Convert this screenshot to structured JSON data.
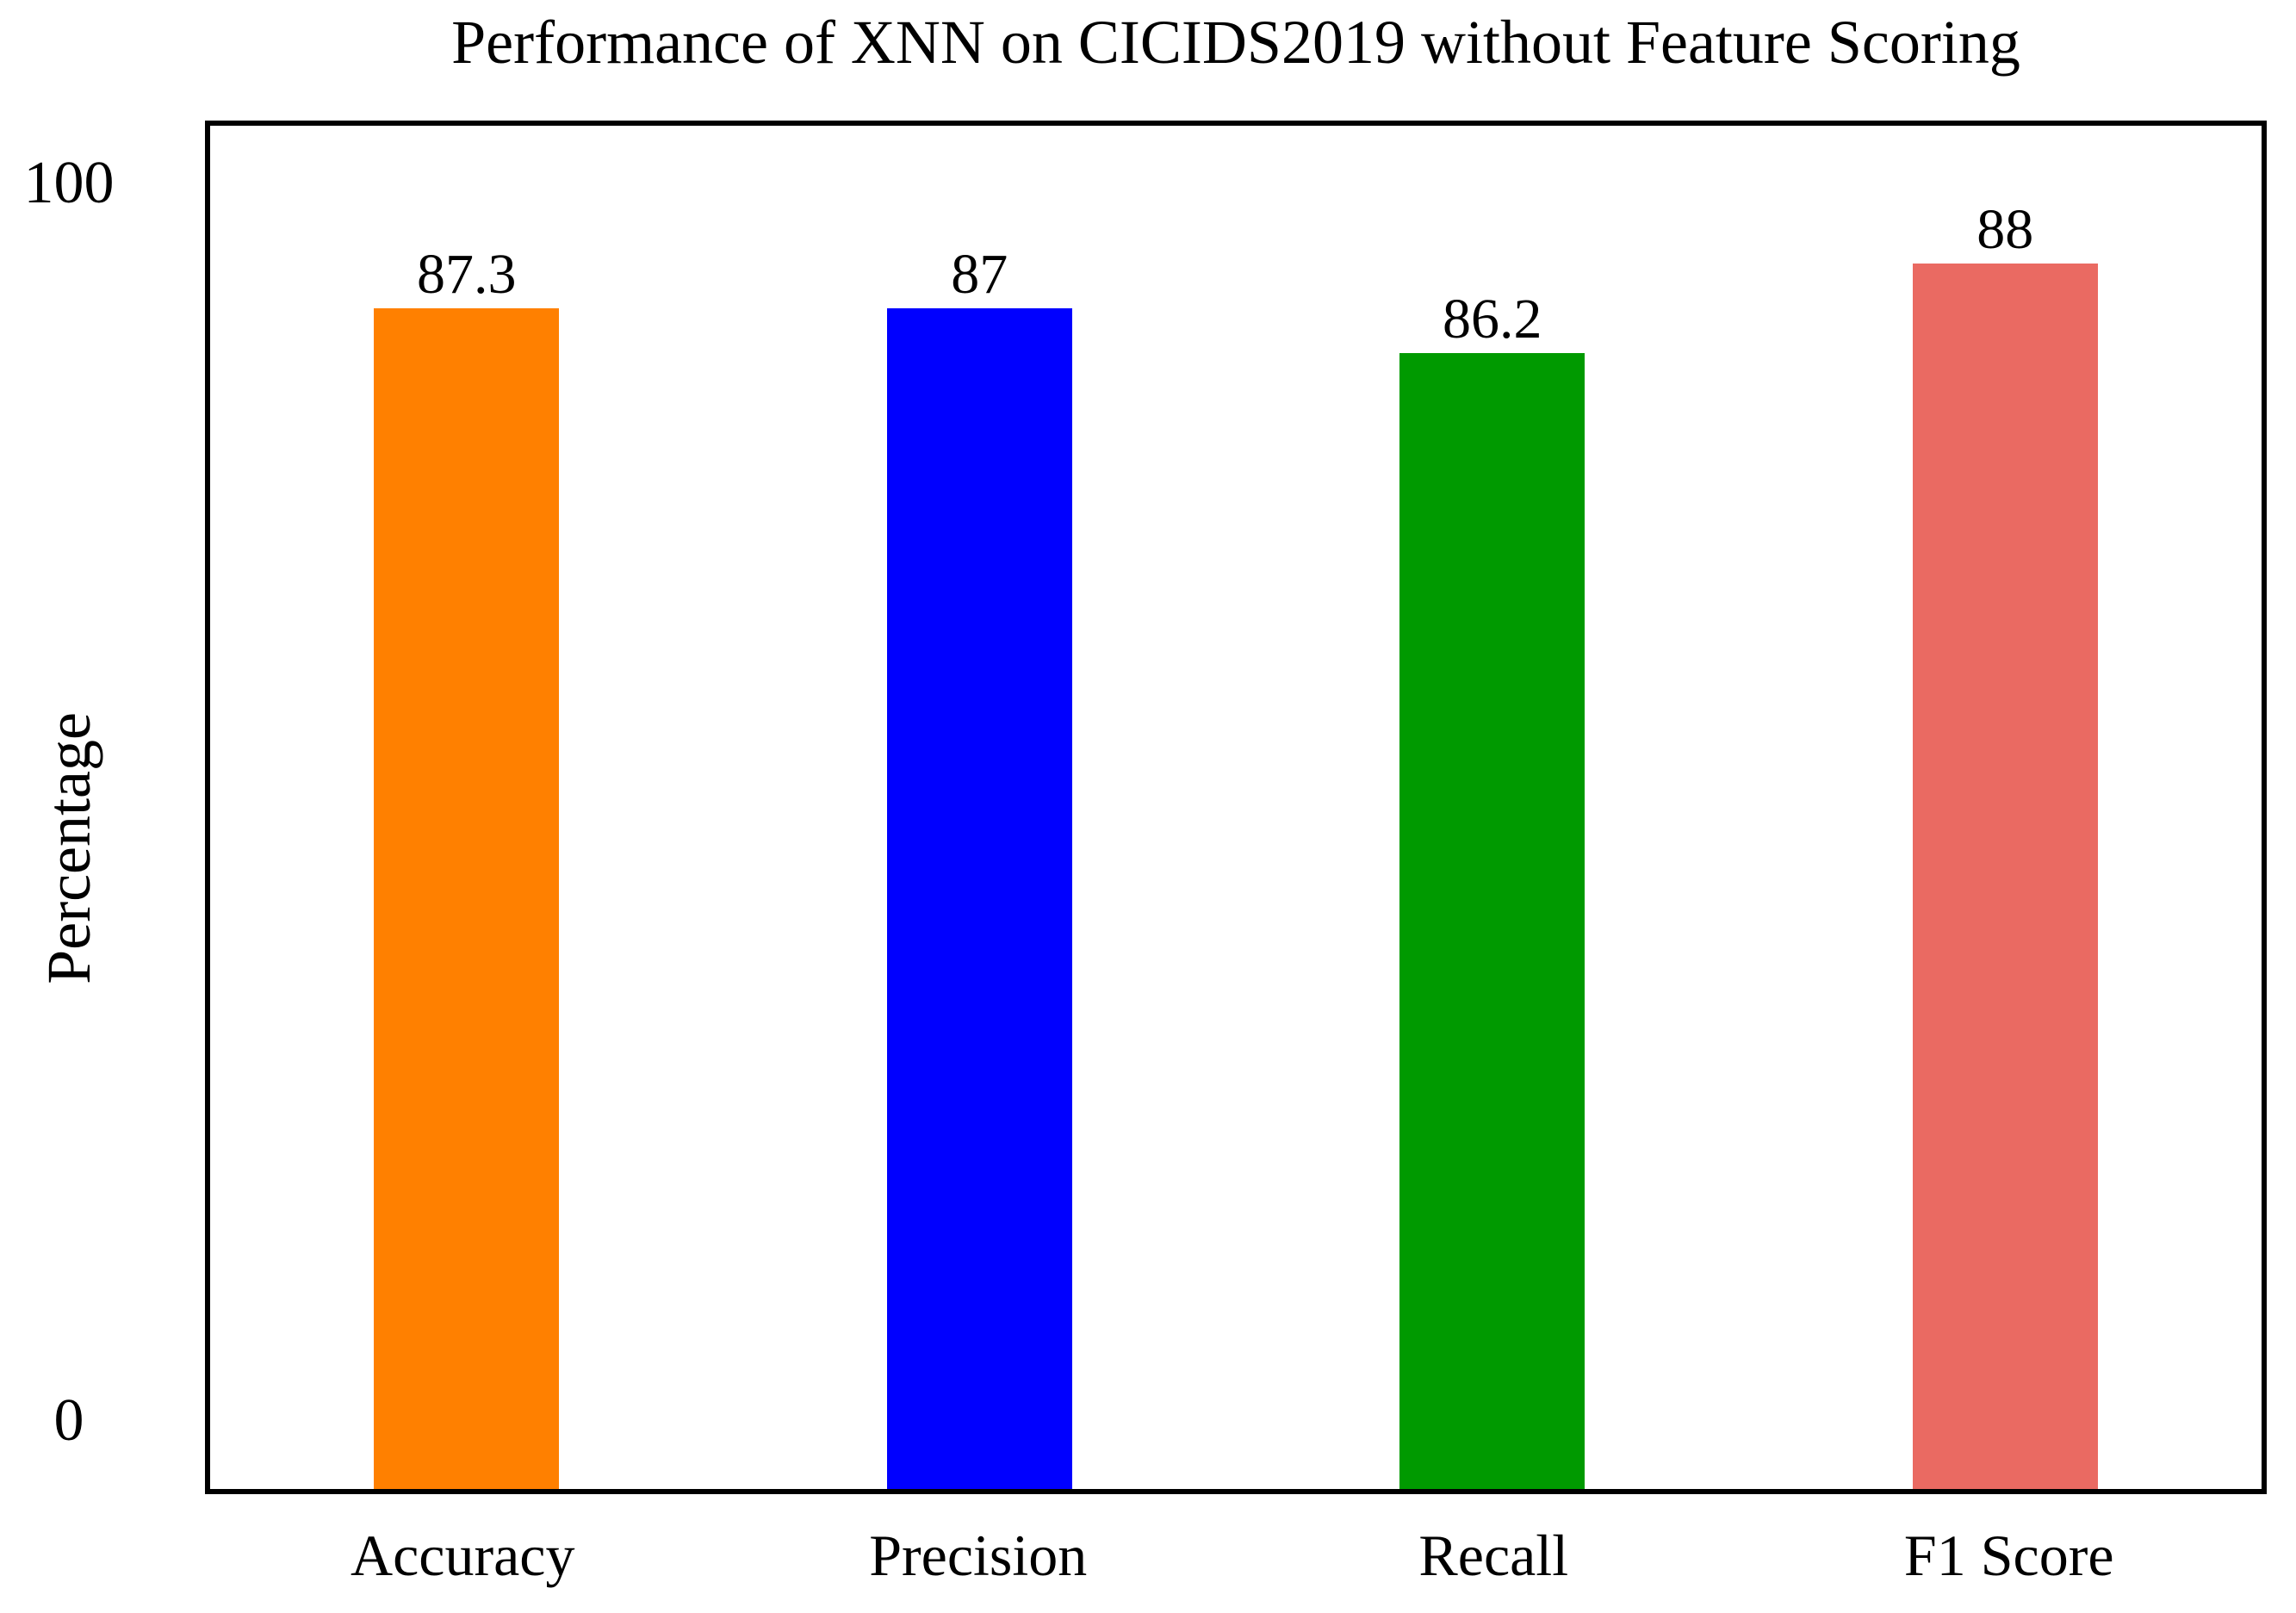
{
  "chart_data": {
    "type": "bar",
    "title": "Performance of XNN on CICIDS2019 without Feature Scoring",
    "ylabel": "Percentage",
    "xlabel": "",
    "categories": [
      "Accuracy",
      "Precision",
      "Recall",
      "F1 Score"
    ],
    "values": [
      87.3,
      87,
      86.2,
      88
    ],
    "value_labels": [
      "87.3",
      "87",
      "86.2",
      "88"
    ],
    "bar_colors": [
      "#FF8000",
      "#0000FF",
      "#009A00",
      "#EA6A62"
    ],
    "ytick_labels": [
      "100",
      "0"
    ],
    "ylim": [
      0,
      100
    ],
    "grid": false,
    "legend_position": "none",
    "bar_render_heights_pct": [
      86.6,
      86.6,
      83.3,
      89.9
    ],
    "frame_color": "#000000"
  }
}
